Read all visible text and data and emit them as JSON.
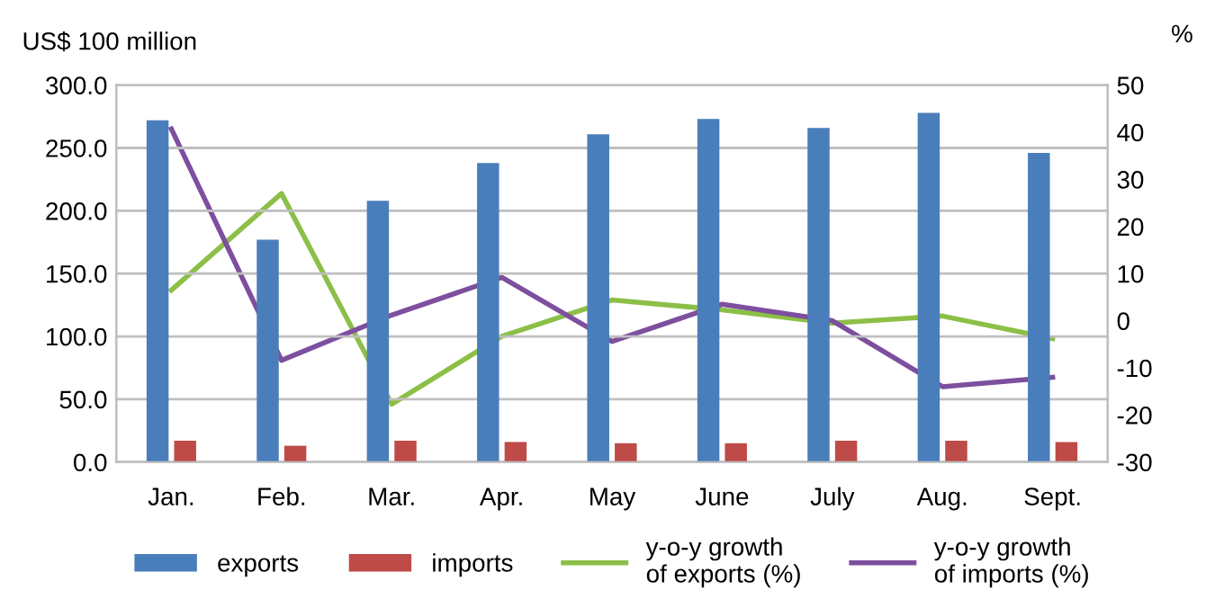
{
  "chart_data": {
    "type": "bar",
    "ylabel": "US$ 100 million",
    "y2label": "%",
    "categories": [
      "Jan.",
      "Feb.",
      "Mar.",
      "Apr.",
      "May",
      "June",
      "July",
      "Aug.",
      "Sept."
    ],
    "series": [
      {
        "name": "exports",
        "color": "#4a7ebb",
        "values": [
          272,
          177,
          208,
          238,
          261,
          273,
          266,
          278,
          246
        ]
      },
      {
        "name": "imports",
        "color": "#be4b48",
        "values": [
          17,
          13,
          17,
          16,
          15,
          15,
          17,
          17,
          16
        ]
      },
      {
        "name": "y-o-y growth\nof exports (%)",
        "type": "line",
        "axis": "y2",
        "color": "#8cbf47",
        "values": [
          6.5,
          27,
          -17.7,
          -3.3,
          4.4,
          2.3,
          -0.5,
          1,
          -3.8
        ]
      },
      {
        "name": "y-o-y growth\nof imports (%)",
        "type": "line",
        "axis": "y2",
        "color": "#7d4f9e",
        "values": [
          40.7,
          -8.4,
          1.2,
          9.2,
          -4.4,
          3.5,
          0,
          -14,
          -12
        ]
      }
    ],
    "ylim": [
      0,
      300
    ],
    "yticks": [
      {
        "value": 0,
        "label": "0.0"
      },
      {
        "value": 50,
        "label": "50.0"
      },
      {
        "value": 100,
        "label": "100.0"
      },
      {
        "value": 150,
        "label": "150.0"
      },
      {
        "value": 200,
        "label": "200.0"
      },
      {
        "value": 250,
        "label": "250.0"
      },
      {
        "value": 300,
        "label": "300.0"
      }
    ],
    "y2lim": [
      -30,
      50
    ],
    "y2ticks": [
      -30,
      -20,
      -10,
      0,
      10,
      20,
      30,
      40,
      50
    ],
    "grid": "y",
    "legend": "bottom",
    "marker": "none",
    "line_style": "solid"
  }
}
